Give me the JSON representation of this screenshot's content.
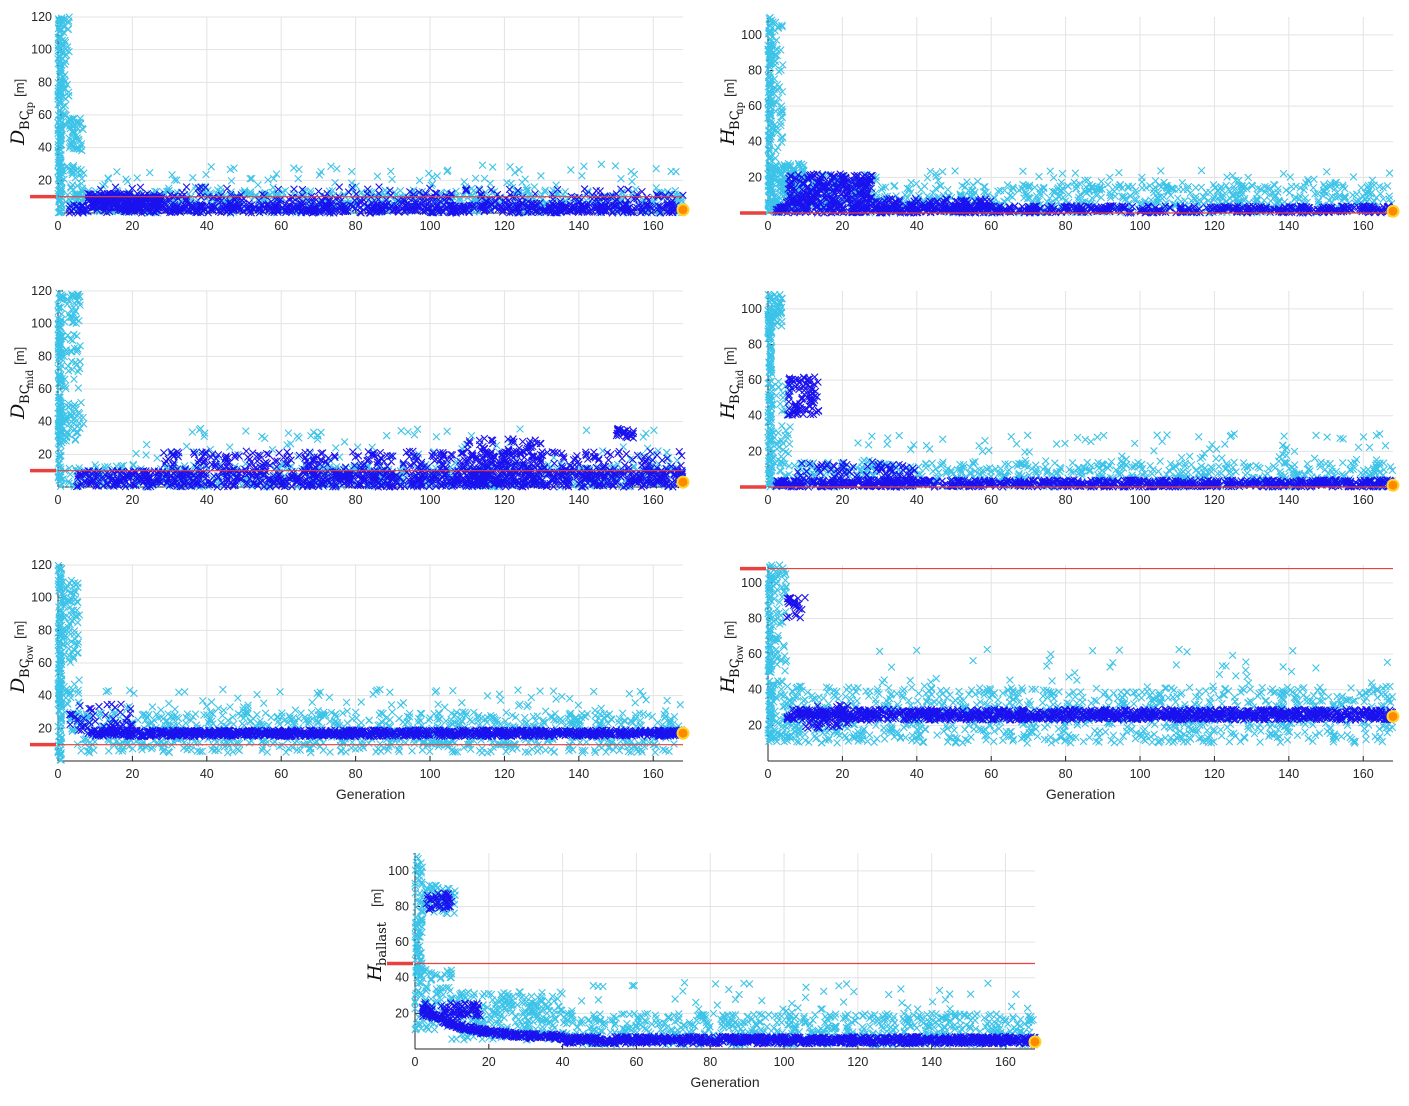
{
  "colors": {
    "explored": "#3cc3e8",
    "selected": "#1a12ee",
    "limit": "#e8413e",
    "optimum_fill": "#ff8a00",
    "optimum_ring": "#ffd42a",
    "grid": "#e3e3e3"
  },
  "marker": "x",
  "chart_data": [
    {
      "id": "d_bc_up",
      "type": "scatter",
      "title": "",
      "ylabel": {
        "symbol": "D",
        "sub": "BC",
        "sub2": "up",
        "unit": "[m]"
      },
      "xlabel": "",
      "xlim": [
        0,
        168
      ],
      "ylim": [
        0,
        120
      ],
      "xticks": [
        0,
        20,
        40,
        60,
        80,
        100,
        120,
        140,
        160
      ],
      "yticks": [
        20,
        40,
        60,
        80,
        100,
        120
      ],
      "grid": true,
      "limit": 10,
      "optimum": {
        "x": 168,
        "y": 2
      },
      "explored_clusters": [
        {
          "x": [
            0,
            1
          ],
          "y": [
            0,
            120
          ],
          "n": 160
        },
        {
          "x": [
            1,
            3
          ],
          "y": [
            50,
            120
          ],
          "n": 50
        },
        {
          "x": [
            3,
            7
          ],
          "y": [
            36,
            58
          ],
          "n": 45
        },
        {
          "x": [
            0,
            7
          ],
          "y": [
            2,
            30
          ],
          "n": 60
        },
        {
          "x": [
            5,
            168
          ],
          "y": [
            0,
            14
          ],
          "n": 650
        },
        {
          "x": [
            5,
            168
          ],
          "y": [
            14,
            30
          ],
          "n": 90
        }
      ],
      "selected_clusters": [
        {
          "x": [
            2,
            168
          ],
          "y": [
            0,
            5
          ],
          "n": 650
        },
        {
          "x": [
            8,
            28
          ],
          "y": [
            3,
            12
          ],
          "n": 240
        },
        {
          "x": [
            28,
            168
          ],
          "y": [
            4,
            12
          ],
          "n": 230
        },
        {
          "x": [
            10,
            168
          ],
          "y": [
            12,
            16
          ],
          "n": 40
        }
      ]
    },
    {
      "id": "h_bc_up",
      "type": "scatter",
      "title": "",
      "ylabel": {
        "symbol": "H",
        "sub": "BC",
        "sub2": "up",
        "unit": "[m]"
      },
      "xlabel": "",
      "xlim": [
        0,
        168
      ],
      "ylim": [
        0,
        110
      ],
      "xticks": [
        0,
        20,
        40,
        60,
        80,
        100,
        120,
        140,
        160
      ],
      "yticks": [
        20,
        40,
        60,
        80,
        100
      ],
      "grid": true,
      "limit": 0,
      "optimum": {
        "x": 168,
        "y": 1
      },
      "explored_clusters": [
        {
          "x": [
            0,
            1
          ],
          "y": [
            0,
            110
          ],
          "n": 140
        },
        {
          "x": [
            1,
            4
          ],
          "y": [
            30,
            108
          ],
          "n": 60
        },
        {
          "x": [
            0,
            10
          ],
          "y": [
            0,
            28
          ],
          "n": 180
        },
        {
          "x": [
            10,
            30
          ],
          "y": [
            0,
            22
          ],
          "n": 120
        },
        {
          "x": [
            30,
            168
          ],
          "y": [
            0,
            16
          ],
          "n": 600
        },
        {
          "x": [
            30,
            168
          ],
          "y": [
            16,
            24
          ],
          "n": 50
        }
      ],
      "selected_clusters": [
        {
          "x": [
            2,
            168
          ],
          "y": [
            0,
            4
          ],
          "n": 650
        },
        {
          "x": [
            5,
            28
          ],
          "y": [
            3,
            22
          ],
          "n": 300
        },
        {
          "x": [
            28,
            60
          ],
          "y": [
            0,
            8
          ],
          "n": 150
        }
      ]
    },
    {
      "id": "d_bc_mid",
      "type": "scatter",
      "title": "",
      "ylabel": {
        "symbol": "D",
        "sub": "BC",
        "sub2": "mid",
        "unit": "[m]"
      },
      "xlabel": "",
      "xlim": [
        0,
        168
      ],
      "ylim": [
        0,
        120
      ],
      "xticks": [
        0,
        20,
        40,
        60,
        80,
        100,
        120,
        140,
        160
      ],
      "yticks": [
        20,
        40,
        60,
        80,
        100,
        120
      ],
      "grid": true,
      "limit": 10,
      "optimum": {
        "x": 168,
        "y": 3
      },
      "explored_clusters": [
        {
          "x": [
            0,
            1
          ],
          "y": [
            0,
            120
          ],
          "n": 150
        },
        {
          "x": [
            1,
            6
          ],
          "y": [
            100,
            118
          ],
          "n": 35
        },
        {
          "x": [
            1,
            6
          ],
          "y": [
            60,
            95
          ],
          "n": 35
        },
        {
          "x": [
            0,
            7
          ],
          "y": [
            28,
            52
          ],
          "n": 60
        },
        {
          "x": [
            0,
            168
          ],
          "y": [
            0,
            14
          ],
          "n": 550
        },
        {
          "x": [
            20,
            168
          ],
          "y": [
            14,
            36
          ],
          "n": 90
        }
      ],
      "selected_clusters": [
        {
          "x": [
            5,
            168
          ],
          "y": [
            0,
            10
          ],
          "n": 950
        },
        {
          "x": [
            28,
            168
          ],
          "y": [
            10,
            22
          ],
          "n": 350
        },
        {
          "x": [
            110,
            130
          ],
          "y": [
            0,
            30
          ],
          "n": 160
        },
        {
          "x": [
            150,
            155
          ],
          "y": [
            30,
            36
          ],
          "n": 25
        }
      ]
    },
    {
      "id": "h_bc_mid",
      "type": "scatter",
      "title": "",
      "ylabel": {
        "symbol": "H",
        "sub": "BC",
        "sub2": "mid",
        "unit": "[m]"
      },
      "xlabel": "",
      "xlim": [
        0,
        168
      ],
      "ylim": [
        0,
        110
      ],
      "xticks": [
        0,
        20,
        40,
        60,
        80,
        100,
        120,
        140,
        160
      ],
      "yticks": [
        20,
        40,
        60,
        80,
        100
      ],
      "grid": true,
      "limit": 0,
      "optimum": {
        "x": 168,
        "y": 1
      },
      "explored_clusters": [
        {
          "x": [
            0,
            1
          ],
          "y": [
            0,
            108
          ],
          "n": 150
        },
        {
          "x": [
            1,
            4
          ],
          "y": [
            90,
            108
          ],
          "n": 40
        },
        {
          "x": [
            0,
            6
          ],
          "y": [
            0,
            60
          ],
          "n": 70
        },
        {
          "x": [
            5,
            168
          ],
          "y": [
            0,
            14
          ],
          "n": 600
        },
        {
          "x": [
            20,
            168
          ],
          "y": [
            14,
            30
          ],
          "n": 80
        }
      ],
      "selected_clusters": [
        {
          "x": [
            2,
            168
          ],
          "y": [
            0,
            4
          ],
          "n": 850
        },
        {
          "x": [
            5,
            14
          ],
          "y": [
            40,
            62
          ],
          "n": 90
        },
        {
          "x": [
            8,
            40
          ],
          "y": [
            4,
            14
          ],
          "n": 80
        }
      ]
    },
    {
      "id": "d_bc_low",
      "type": "scatter",
      "title": "",
      "ylabel": {
        "symbol": "D",
        "sub": "BC",
        "sub2": "low",
        "unit": "[m]"
      },
      "xlabel": "Generation",
      "xlim": [
        0,
        168
      ],
      "ylim": [
        0,
        120
      ],
      "xticks": [
        0,
        20,
        40,
        60,
        80,
        100,
        120,
        140,
        160
      ],
      "yticks": [
        20,
        40,
        60,
        80,
        100,
        120
      ],
      "grid": true,
      "limit": 10,
      "optimum": {
        "x": 168,
        "y": 17
      },
      "explored_clusters": [
        {
          "x": [
            0,
            1
          ],
          "y": [
            0,
            120
          ],
          "n": 140
        },
        {
          "x": [
            1,
            6
          ],
          "y": [
            60,
            112
          ],
          "n": 80
        },
        {
          "x": [
            0,
            6
          ],
          "y": [
            18,
            50
          ],
          "n": 40
        },
        {
          "x": [
            5,
            168
          ],
          "y": [
            5,
            30
          ],
          "n": 900
        },
        {
          "x": [
            10,
            168
          ],
          "y": [
            30,
            44
          ],
          "n": 80
        }
      ],
      "selected_clusters": [
        {
          "x": [
            8,
            168
          ],
          "y": [
            15,
            19
          ],
          "n": 1100
        },
        {
          "x": [
            2,
            20
          ],
          "y": [
            18,
            35
          ],
          "n": 50
        }
      ]
    },
    {
      "id": "h_bc_low",
      "type": "scatter",
      "title": "",
      "ylabel": {
        "symbol": "H",
        "sub": "BC",
        "sub2": "low",
        "unit": "[m]"
      },
      "xlabel": "Generation",
      "xlim": [
        0,
        168
      ],
      "ylim": [
        0,
        110
      ],
      "xticks": [
        0,
        20,
        40,
        60,
        80,
        100,
        120,
        140,
        160
      ],
      "yticks": [
        20,
        40,
        60,
        80,
        100
      ],
      "grid": true,
      "limit": 108,
      "optimum": {
        "x": 168,
        "y": 25
      },
      "explored_clusters": [
        {
          "x": [
            0,
            1
          ],
          "y": [
            10,
            110
          ],
          "n": 120
        },
        {
          "x": [
            1,
            5
          ],
          "y": [
            50,
            110
          ],
          "n": 60
        },
        {
          "x": [
            0,
            10
          ],
          "y": [
            10,
            45
          ],
          "n": 80
        },
        {
          "x": [
            5,
            168
          ],
          "y": [
            10,
            42
          ],
          "n": 1000
        },
        {
          "x": [
            30,
            168
          ],
          "y": [
            42,
            64
          ],
          "n": 40
        }
      ],
      "selected_clusters": [
        {
          "x": [
            5,
            168
          ],
          "y": [
            23,
            29
          ],
          "n": 1100
        },
        {
          "x": [
            5,
            10
          ],
          "y": [
            80,
            92
          ],
          "n": 25
        },
        {
          "x": [
            10,
            22
          ],
          "y": [
            18,
            32
          ],
          "n": 50
        }
      ]
    },
    {
      "id": "h_ballast",
      "type": "scatter",
      "title": "",
      "ylabel": {
        "symbol": "H",
        "sub": "ballast",
        "sub2": "",
        "unit": "[m]"
      },
      "xlabel": "Generation",
      "xlim": [
        0,
        168
      ],
      "ylim": [
        0,
        110
      ],
      "xticks": [
        0,
        20,
        40,
        60,
        80,
        100,
        120,
        140,
        160
      ],
      "yticks": [
        20,
        40,
        60,
        80,
        100
      ],
      "grid": true,
      "limit": 48,
      "optimum": {
        "x": 168,
        "y": 4
      },
      "explored_clusters": [
        {
          "x": [
            0,
            2
          ],
          "y": [
            40,
            108
          ],
          "n": 80
        },
        {
          "x": [
            2,
            11
          ],
          "y": [
            75,
            92
          ],
          "n": 70
        },
        {
          "x": [
            0,
            10
          ],
          "y": [
            10,
            45
          ],
          "n": 100
        },
        {
          "x": [
            10,
            40
          ],
          "y": [
            5,
            32
          ],
          "n": 250
        },
        {
          "x": [
            40,
            168
          ],
          "y": [
            2,
            20
          ],
          "n": 700
        },
        {
          "x": [
            40,
            168
          ],
          "y": [
            20,
            38
          ],
          "n": 50
        }
      ],
      "selected_clusters": [
        {
          "x": [
            3,
            10
          ],
          "y": [
            78,
            88
          ],
          "n": 40
        },
        {
          "x": [
            2,
            18
          ],
          "y": [
            18,
            26
          ],
          "n": 80
        },
        {
          "x": [
            40,
            168
          ],
          "y": [
            3,
            7
          ],
          "n": 900
        }
      ],
      "selected_curve": {
        "x0": 2,
        "x1": 40,
        "y0": 22,
        "y1": 6,
        "n": 260
      }
    }
  ]
}
